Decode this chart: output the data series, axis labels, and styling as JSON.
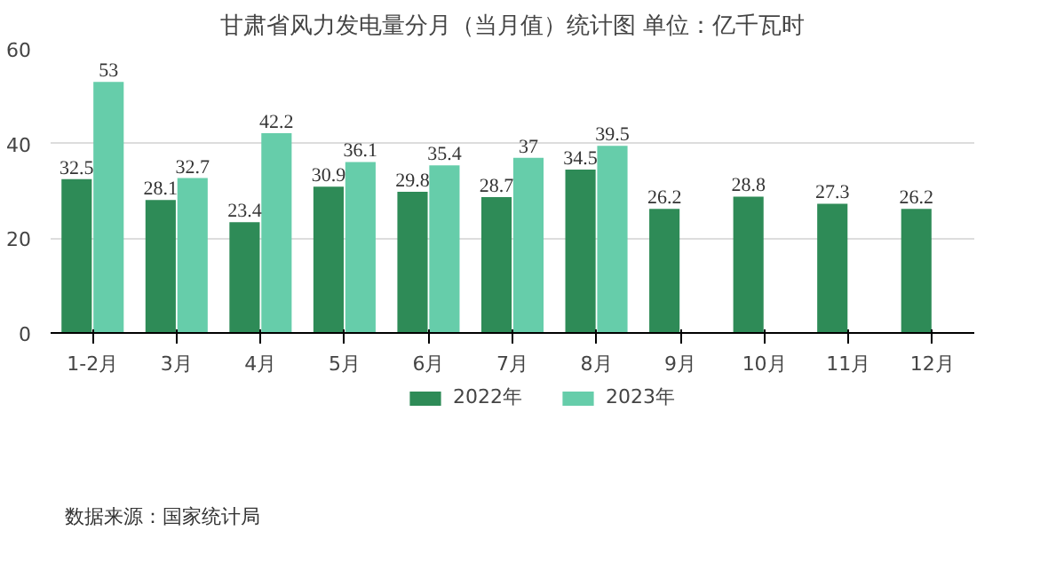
{
  "chart_data": {
    "type": "bar",
    "title": "甘肃省风力发电量分月（当月值）统计图 单位：亿千瓦时",
    "categories": [
      "1-2月",
      "3月",
      "4月",
      "5月",
      "6月",
      "7月",
      "8月",
      "9月",
      "10月",
      "11月",
      "12月"
    ],
    "series": [
      {
        "name": "2022年",
        "color": "#2e8b57",
        "values": [
          32.5,
          28.1,
          23.4,
          30.9,
          29.8,
          28.7,
          34.5,
          26.2,
          28.8,
          27.3,
          26.2
        ]
      },
      {
        "name": "2023年",
        "color": "#66cdaa",
        "values": [
          53,
          32.7,
          42.2,
          36.1,
          35.4,
          37,
          39.5,
          null,
          null,
          null,
          null
        ]
      }
    ],
    "ylim": [
      0,
      60
    ],
    "yticks": [
      0,
      20,
      40,
      60
    ],
    "grid": "y",
    "legend": "bottom",
    "data_labels": true,
    "annotations": [
      "数据来源：国家统计局"
    ]
  }
}
